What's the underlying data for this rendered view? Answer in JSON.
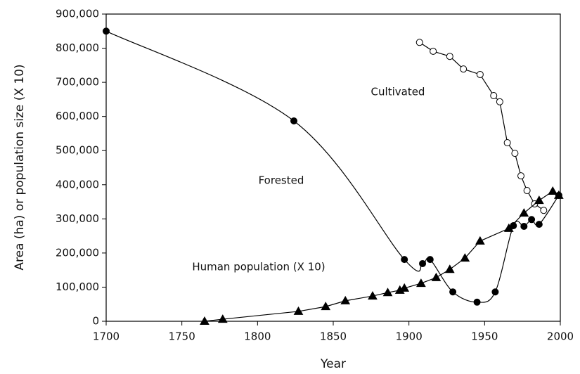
{
  "chart_data": {
    "type": "line",
    "xlabel": "Year",
    "ylabel": "Area (ha) or population size (X 10)",
    "xlim": [
      1700,
      2000
    ],
    "xticks": [
      1700,
      1750,
      1800,
      1850,
      1900,
      1950,
      2000
    ],
    "ylim": [
      0,
      900000
    ],
    "yticks": [
      0,
      {
        "value": 100000,
        "label": "100,000"
      },
      {
        "value": 200000,
        "label": "200,000"
      },
      {
        "value": 300000,
        "label": "300,000"
      },
      {
        "value": 400000,
        "label": "400,000"
      },
      {
        "value": 500000,
        "label": "500,000"
      },
      {
        "value": 600000,
        "label": "600,000"
      },
      {
        "value": 700000,
        "label": "700,000"
      },
      {
        "value": 800000,
        "label": "800,000"
      },
      {
        "value": 900000,
        "label": "900,000"
      }
    ],
    "series": [
      {
        "name": "Forested",
        "color": "#000000",
        "marker": "circle",
        "filled": true,
        "smooth": true,
        "x": [
          1700,
          1824,
          1897,
          1909,
          1914,
          1929,
          1945,
          1957,
          1969,
          1976,
          1981,
          1986,
          1999
        ],
        "values": [
          850000,
          587000,
          181000,
          169000,
          181000,
          86000,
          56000,
          86000,
          280000,
          278000,
          298000,
          284000,
          369000
        ]
      },
      {
        "name": "Cultivated",
        "color": "#000000",
        "marker": "circle",
        "filled": false,
        "smooth": false,
        "x": [
          1907,
          1916,
          1927,
          1936,
          1947,
          1956,
          1960,
          1965,
          1970,
          1974,
          1978,
          1983,
          1989
        ],
        "values": [
          817000,
          791000,
          776000,
          739000,
          723000,
          661000,
          643000,
          523000,
          492000,
          426000,
          383000,
          344000,
          325000
        ]
      },
      {
        "name": "Human population (X 10)",
        "color": "#000000",
        "marker": "triangle",
        "filled": true,
        "smooth": false,
        "x": [
          1765,
          1777,
          1827,
          1845,
          1858,
          1876,
          1886,
          1894,
          1897,
          1908,
          1918,
          1927,
          1937,
          1947,
          1966,
          1976,
          1986,
          1995,
          1999
        ],
        "values": [
          0,
          6000,
          29000,
          43000,
          60000,
          74000,
          84000,
          91000,
          97000,
          111000,
          128000,
          152000,
          185000,
          235000,
          272000,
          317000,
          354000,
          381000,
          369000
        ]
      }
    ]
  }
}
